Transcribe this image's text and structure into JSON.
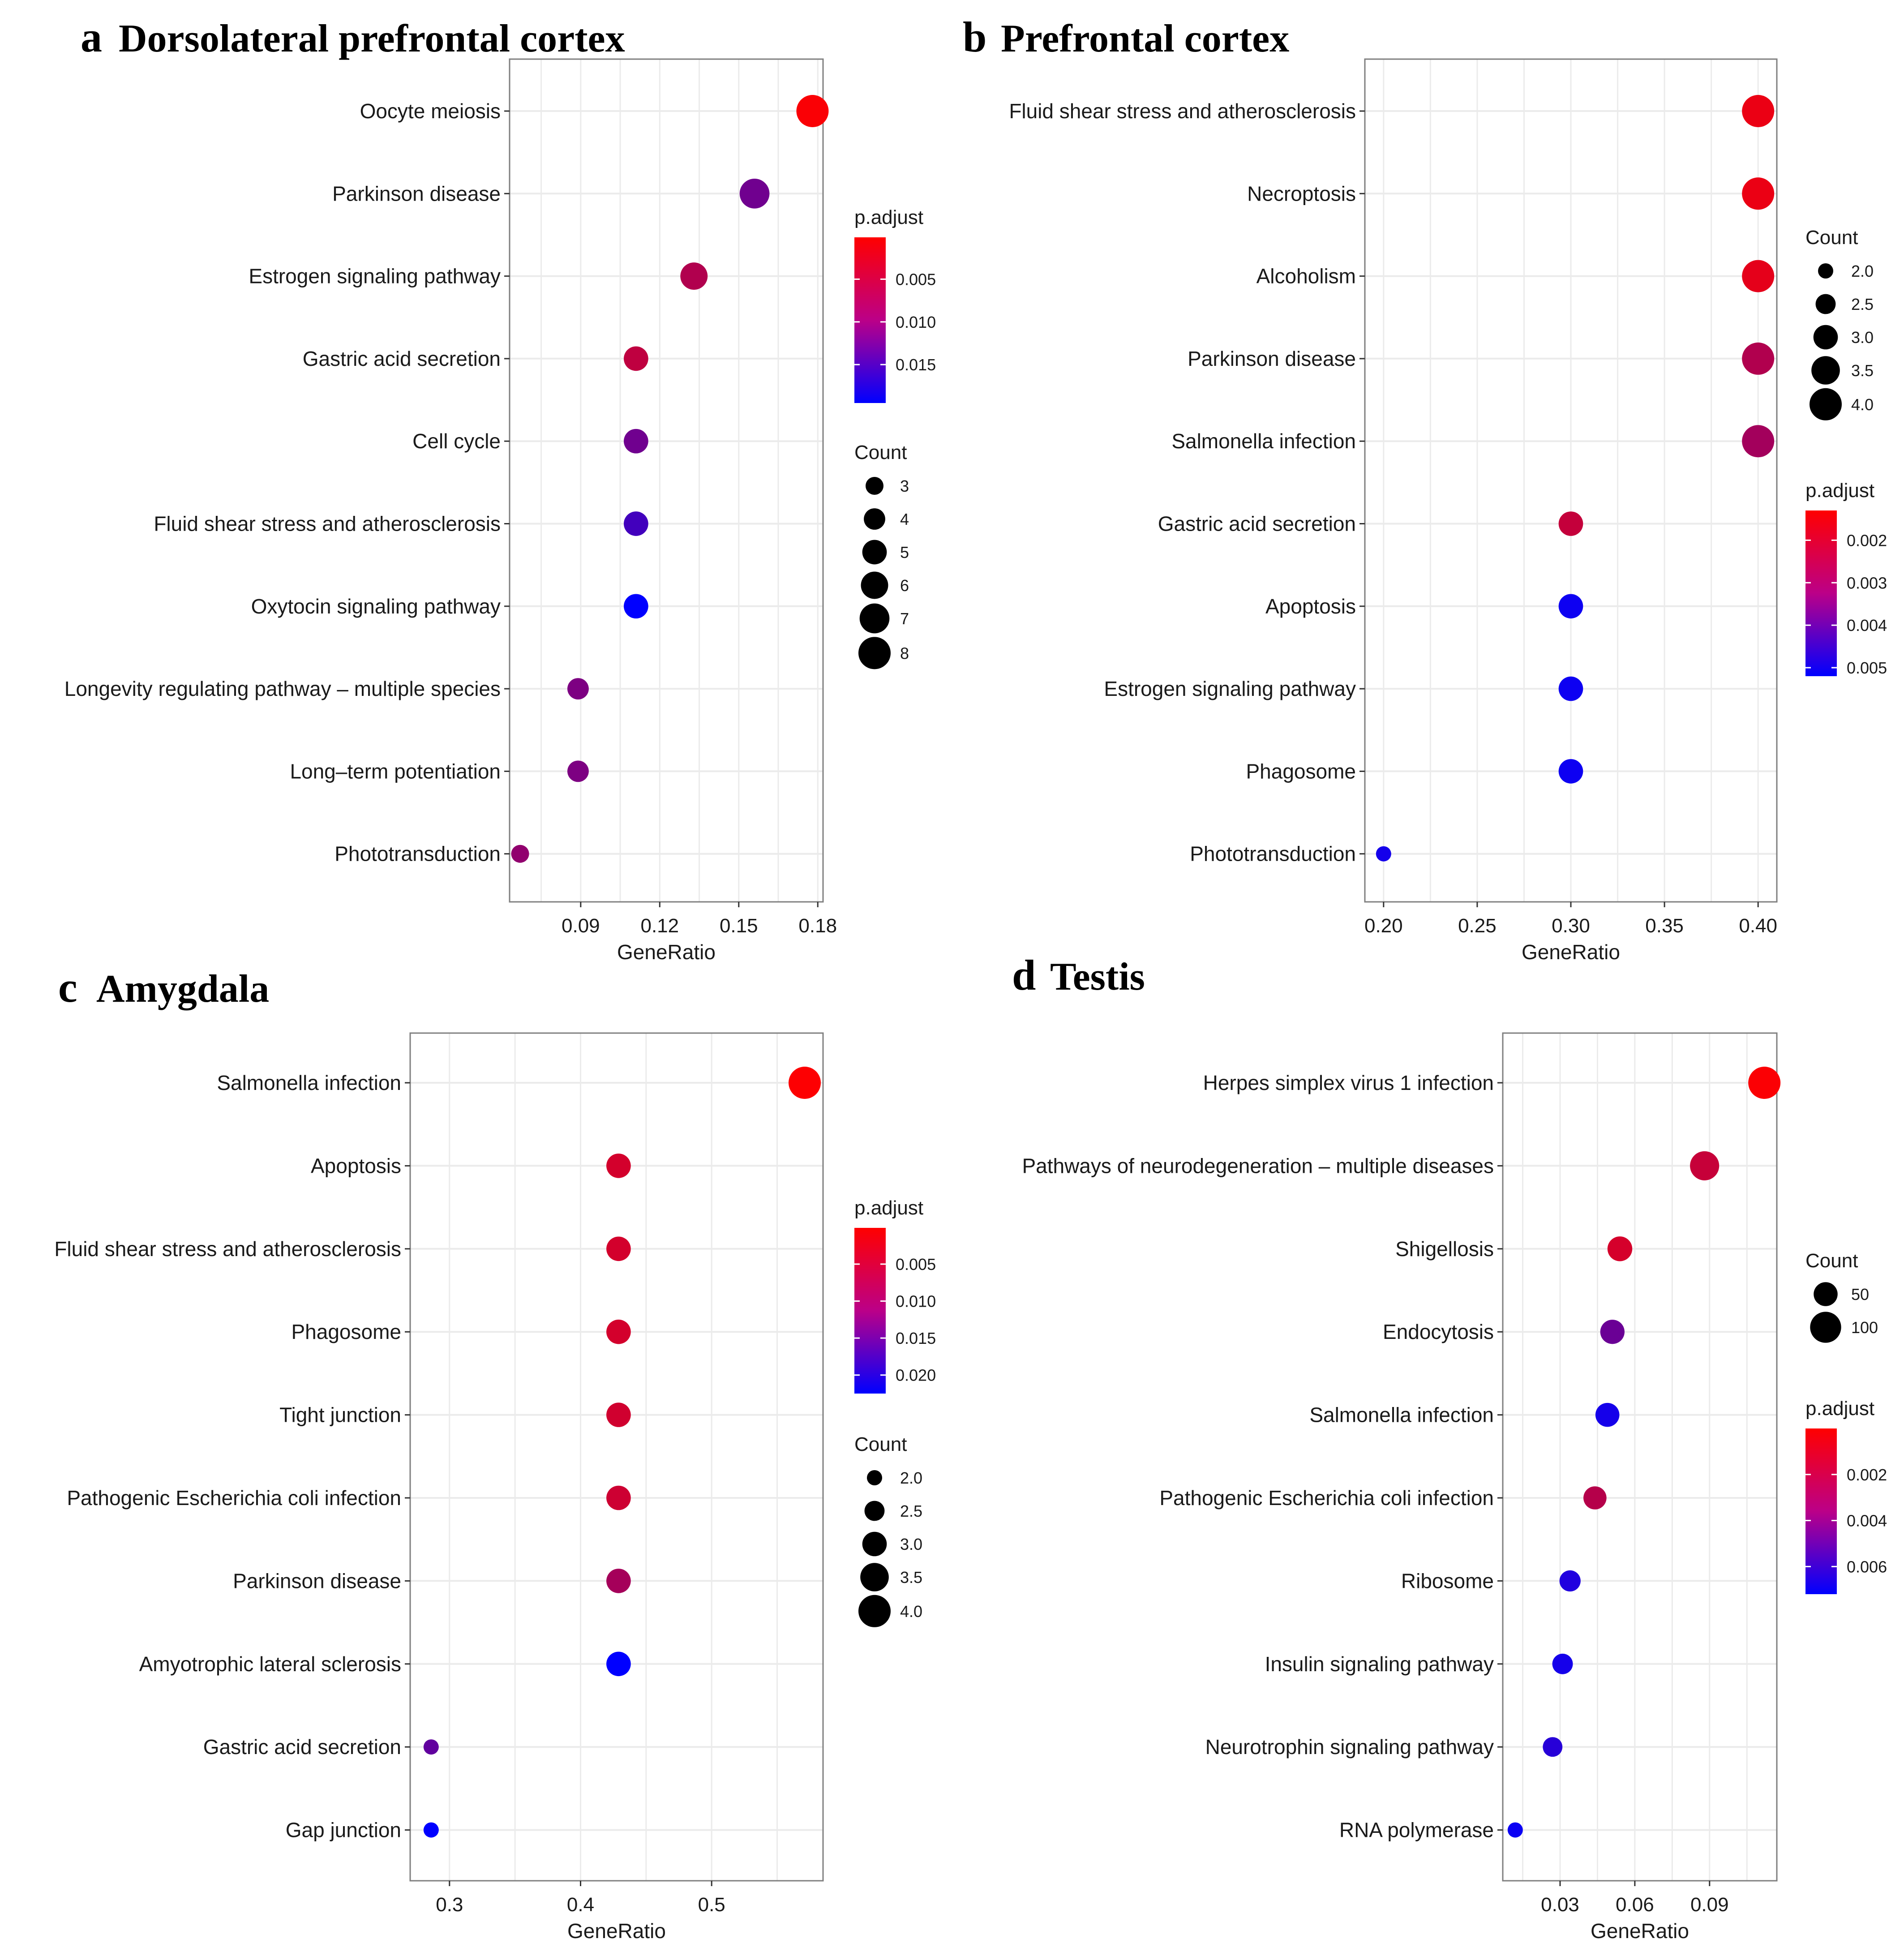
{
  "colors": {
    "high": "#ff0000",
    "low": "#0000ff",
    "grid": "#ebebeb",
    "frame": "#7f7f7f",
    "text": "#1a1a1a"
  },
  "chart_data": [
    {
      "type": "scatter",
      "panel_letter": "a",
      "title": "Dorsolateral prefrontal cortex",
      "xlabel": "GeneRatio",
      "xlim": [
        0.063,
        0.182
      ],
      "xticks": [
        0.09,
        0.12,
        0.15,
        0.18
      ],
      "xtick_labels": [
        "0.09",
        "0.12",
        "0.15",
        "0.18"
      ],
      "categories": [
        "Oocyte meiosis",
        "Parkinson disease",
        "Estrogen signaling pathway",
        "Gastric acid secretion",
        "Cell cycle",
        "Fluid shear stress and atherosclerosis",
        "Oxytocin signaling pathway",
        "Longevity regulating pathway – multiple species",
        "Long–term potentiation",
        "Phototransduction"
      ],
      "x": [
        0.178,
        0.156,
        0.133,
        0.111,
        0.111,
        0.111,
        0.111,
        0.089,
        0.089,
        0.067
      ],
      "count": [
        8,
        7,
        6,
        5,
        5,
        5,
        5,
        4,
        4,
        3
      ],
      "p_adjust": [
        0.0005,
        0.011,
        0.006,
        0.005,
        0.011,
        0.0145,
        0.0195,
        0.01,
        0.01,
        0.0085
      ],
      "color_legend": {
        "title": "p.adjust",
        "range": [
          0.0001,
          0.0195
        ],
        "ticks": [
          0.005,
          0.01,
          0.015
        ],
        "tick_labels": [
          "0.005",
          "0.010",
          "0.015"
        ]
      },
      "size_legend": {
        "title": "Count",
        "values": [
          3,
          4,
          5,
          6,
          7,
          8
        ],
        "labels": [
          "3",
          "4",
          "5",
          "6",
          "7",
          "8"
        ]
      },
      "legend_order": "color-first"
    },
    {
      "type": "scatter",
      "panel_letter": "b",
      "title": "Prefrontal cortex",
      "xlabel": "GeneRatio",
      "xlim": [
        0.19,
        0.41
      ],
      "xticks": [
        0.2,
        0.25,
        0.3,
        0.35,
        0.4
      ],
      "xtick_labels": [
        "0.20",
        "0.25",
        "0.30",
        "0.35",
        "0.40"
      ],
      "categories": [
        "Fluid shear stress and atherosclerosis",
        "Necroptosis",
        "Alcoholism",
        "Parkinson disease",
        "Salmonella infection",
        "Gastric acid secretion",
        "Apoptosis",
        "Estrogen signaling pathway",
        "Phagosome",
        "Phototransduction"
      ],
      "x": [
        0.4,
        0.4,
        0.4,
        0.4,
        0.4,
        0.3,
        0.3,
        0.3,
        0.3,
        0.2
      ],
      "count": [
        4,
        4,
        4,
        4,
        4,
        3,
        3,
        3,
        3,
        2
      ],
      "p_adjust": [
        0.0016,
        0.0016,
        0.0017,
        0.0025,
        0.0027,
        0.0022,
        0.005,
        0.005,
        0.005,
        0.0049
      ],
      "color_legend": {
        "title": "p.adjust",
        "range": [
          0.0013,
          0.0052
        ],
        "ticks": [
          0.002,
          0.003,
          0.004,
          0.005
        ],
        "tick_labels": [
          "0.002",
          "0.003",
          "0.004",
          "0.005"
        ]
      },
      "size_legend": {
        "title": "Count",
        "values": [
          2.0,
          2.5,
          3.0,
          3.5,
          4.0
        ],
        "labels": [
          "2.0",
          "2.5",
          "3.0",
          "3.5",
          "4.0"
        ]
      },
      "legend_order": "size-first"
    },
    {
      "type": "scatter",
      "panel_letter": "c",
      "title": "Amygdala",
      "xlabel": "GeneRatio",
      "xlim": [
        0.27,
        0.585
      ],
      "xticks": [
        0.3,
        0.4,
        0.5
      ],
      "xtick_labels": [
        "0.3",
        "0.4",
        "0.5"
      ],
      "categories": [
        "Salmonella infection",
        "Apoptosis",
        "Fluid shear stress and atherosclerosis",
        "Phagosome",
        "Tight junction",
        "Pathogenic Escherichia coli infection",
        "Parkinson disease",
        "Amyotrophic lateral sclerosis",
        "Gastric acid secretion",
        "Gap junction"
      ],
      "x": [
        0.571,
        0.429,
        0.429,
        0.429,
        0.429,
        0.429,
        0.429,
        0.429,
        0.286,
        0.286
      ],
      "count": [
        4,
        3,
        3,
        3,
        3,
        3,
        3,
        3,
        2,
        2
      ],
      "p_adjust": [
        0.0003,
        0.004,
        0.004,
        0.004,
        0.0042,
        0.0045,
        0.008,
        0.0225,
        0.014,
        0.0225
      ],
      "color_legend": {
        "title": "p.adjust",
        "range": [
          0.0001,
          0.0225
        ],
        "ticks": [
          0.005,
          0.01,
          0.015,
          0.02
        ],
        "tick_labels": [
          "0.005",
          "0.010",
          "0.015",
          "0.020"
        ]
      },
      "size_legend": {
        "title": "Count",
        "values": [
          2.0,
          2.5,
          3.0,
          3.5,
          4.0
        ],
        "labels": [
          "2.0",
          "2.5",
          "3.0",
          "3.5",
          "4.0"
        ]
      },
      "legend_order": "color-first"
    },
    {
      "type": "scatter",
      "panel_letter": "d",
      "title": "Testis",
      "xlabel": "GeneRatio",
      "xlim": [
        0.007,
        0.117
      ],
      "xticks": [
        0.03,
        0.06,
        0.09
      ],
      "xtick_labels": [
        "0.03",
        "0.06",
        "0.09"
      ],
      "categories": [
        "Herpes simplex virus 1 infection",
        "Pathways of neurodegeneration – multiple diseases",
        "Shigellosis",
        "Endocytosis",
        "Salmonella infection",
        "Pathogenic Escherichia coli infection",
        "Ribosome",
        "Insulin signaling pathway",
        "Neurotrophin signaling pathway",
        "RNA polymerase"
      ],
      "x": [
        0.112,
        0.088,
        0.054,
        0.051,
        0.049,
        0.044,
        0.034,
        0.031,
        0.027,
        0.012
      ],
      "count": [
        110,
        85,
        55,
        52,
        50,
        45,
        35,
        32,
        28,
        12
      ],
      "p_adjust": [
        0.0001,
        0.0016,
        0.0012,
        0.0042,
        0.0066,
        0.0021,
        0.0063,
        0.0066,
        0.0061,
        0.0069
      ],
      "color_legend": {
        "title": "p.adjust",
        "range": [
          0.0,
          0.0072
        ],
        "ticks": [
          0.002,
          0.004,
          0.006
        ],
        "tick_labels": [
          "0.002",
          "0.004",
          "0.006"
        ]
      },
      "size_legend": {
        "title": "Count",
        "values": [
          50,
          100
        ],
        "labels": [
          "50",
          "100"
        ]
      },
      "legend_order": "size-first"
    }
  ]
}
